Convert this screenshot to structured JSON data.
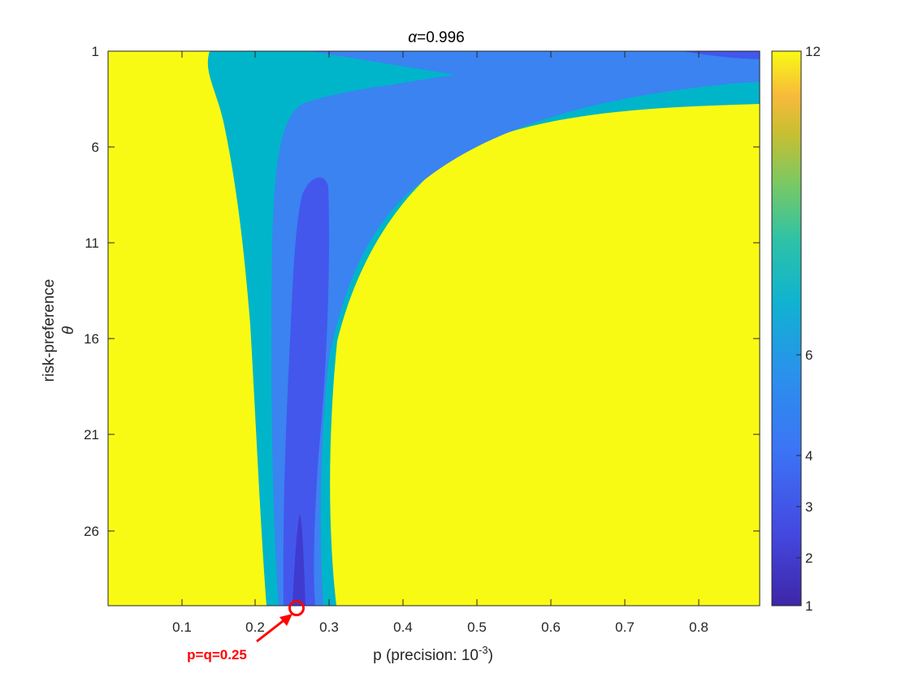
{
  "chart_data": {
    "type": "heatmap",
    "title": "=0.996",
    "title_symbol": "α",
    "xlabel": "p (precision: 10",
    "xlabel_exponent": "-3",
    "xlabel_suffix": ")",
    "ylabel": "risk-preference",
    "ylabel_symbol": "θ",
    "xlim": [
      0.0,
      0.88
    ],
    "ylim": [
      1,
      30
    ],
    "y_reversed": true,
    "x_ticks": [
      "0.1",
      "0.2",
      "0.3",
      "0.4",
      "0.5",
      "0.6",
      "0.7",
      "0.8"
    ],
    "y_ticks": [
      "1",
      "6",
      "11",
      "16",
      "21",
      "26"
    ],
    "colorbar": {
      "scale": "log",
      "range": [
        1,
        12
      ],
      "tick_values": [
        1,
        2,
        3,
        4,
        6,
        12
      ],
      "tick_labels": [
        "1",
        "2",
        "3",
        "4",
        "6",
        "12"
      ]
    },
    "level_colors": {
      "level_12": "#f9fa14",
      "level_6": "#00b5c9",
      "level_4": "#3a83f1",
      "level_3": "#4357ec",
      "level_2": "#3f3bd0"
    },
    "regions": [
      {
        "level": 6,
        "theta": [
          1,
          30
        ],
        "p_min": [
          0.15,
          0.28,
          0.29,
          0.22
        ],
        "p_max": [
          0.88,
          0.4,
          0.31,
          0.31
        ]
      },
      {
        "level": 4,
        "theta": [
          1,
          30
        ],
        "p_min": [
          0.26,
          0.31,
          0.24,
          0.23
        ],
        "p_max": [
          0.88,
          0.36,
          0.3,
          0.29
        ]
      },
      {
        "level": 3,
        "theta": [
          7.7,
          30
        ],
        "p_min": [
          0.25,
          0.24,
          0.24
        ],
        "p_max": [
          0.29,
          0.29,
          0.28
        ]
      },
      {
        "level": 2,
        "theta": [
          25,
          30
        ],
        "p_min": [
          0.255,
          0.252
        ],
        "p_max": [
          0.262,
          0.265
        ]
      }
    ],
    "annotation": {
      "text": "p=q=0.25",
      "marker": "circle",
      "point": {
        "p": 0.25,
        "theta": 30
      },
      "color": "#ff0000"
    }
  }
}
